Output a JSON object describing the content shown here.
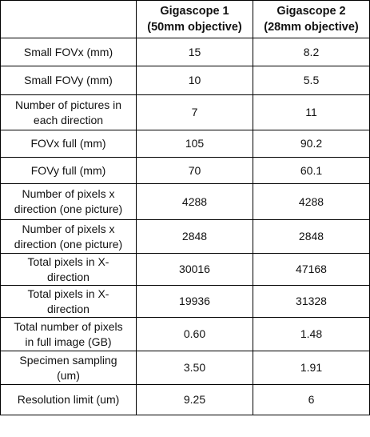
{
  "table": {
    "headers": [
      "",
      [
        "Gigascope 1",
        "(50mm objective)"
      ],
      [
        "Gigascope 2",
        "(28mm objective)"
      ]
    ],
    "rows": [
      {
        "label": [
          "Small FOVx (mm)"
        ],
        "v1": "15",
        "v2": "8.2"
      },
      {
        "label": [
          "Small FOVy (mm)"
        ],
        "v1": "10",
        "v2": "5.5"
      },
      {
        "label": [
          "Number of pictures in",
          "each direction"
        ],
        "v1": "7",
        "v2": "11"
      },
      {
        "label": [
          "FOVx full (mm)"
        ],
        "v1": "105",
        "v2": "90.2"
      },
      {
        "label": [
          "FOVy full (mm)"
        ],
        "v1": "70",
        "v2": "60.1"
      },
      {
        "label": [
          "Number of pixels x",
          "direction (one picture)"
        ],
        "v1": "4288",
        "v2": "4288"
      },
      {
        "label": [
          "Number of pixels x",
          "direction (one picture)"
        ],
        "v1": "2848",
        "v2": "2848"
      },
      {
        "label": [
          "Total pixels in X-",
          "direction"
        ],
        "v1": "30016",
        "v2": "47168"
      },
      {
        "label": [
          "Total pixels in X-",
          "direction"
        ],
        "v1": "19936",
        "v2": "31328"
      },
      {
        "label": [
          "Total number of pixels",
          "in full image (GB)"
        ],
        "v1": "0.60",
        "v2": "1.48"
      },
      {
        "label": [
          "Specimen sampling",
          "(um)"
        ],
        "v1": "3.50",
        "v2": "1.91"
      },
      {
        "label": [
          "Resolution limit (um)"
        ],
        "v1": "9.25",
        "v2": "6"
      }
    ]
  }
}
